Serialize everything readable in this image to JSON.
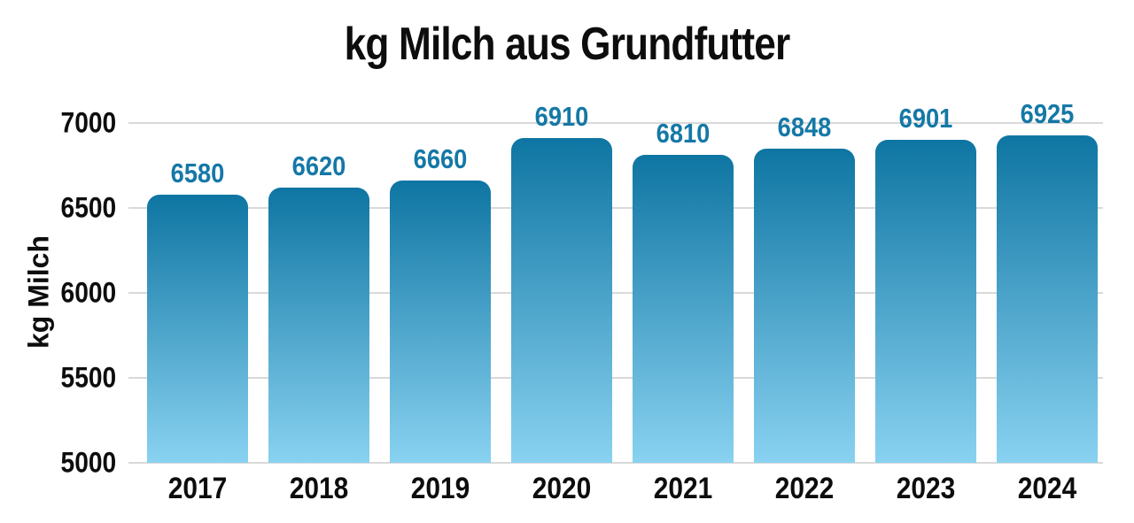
{
  "chart_data": {
    "type": "bar",
    "title": "kg Milch aus Grundfutter",
    "ylabel": "kg Milch",
    "xlabel": "",
    "categories": [
      "2017",
      "2018",
      "2019",
      "2020",
      "2021",
      "2022",
      "2023",
      "2024"
    ],
    "values": [
      6580,
      6620,
      6660,
      6910,
      6810,
      6848,
      6901,
      6925
    ],
    "ylim": [
      5000,
      7000
    ],
    "yticks": [
      5000,
      5500,
      6000,
      6500,
      7000
    ],
    "grid": true,
    "legend": "none",
    "colors": {
      "bar_gradient_top": "#0e75a2",
      "bar_gradient_bottom": "#89d2f1",
      "value_label": "#1578a6",
      "gridline": "#d9d9d9",
      "text": "#0d0d0d",
      "background": "#ffffff"
    }
  }
}
